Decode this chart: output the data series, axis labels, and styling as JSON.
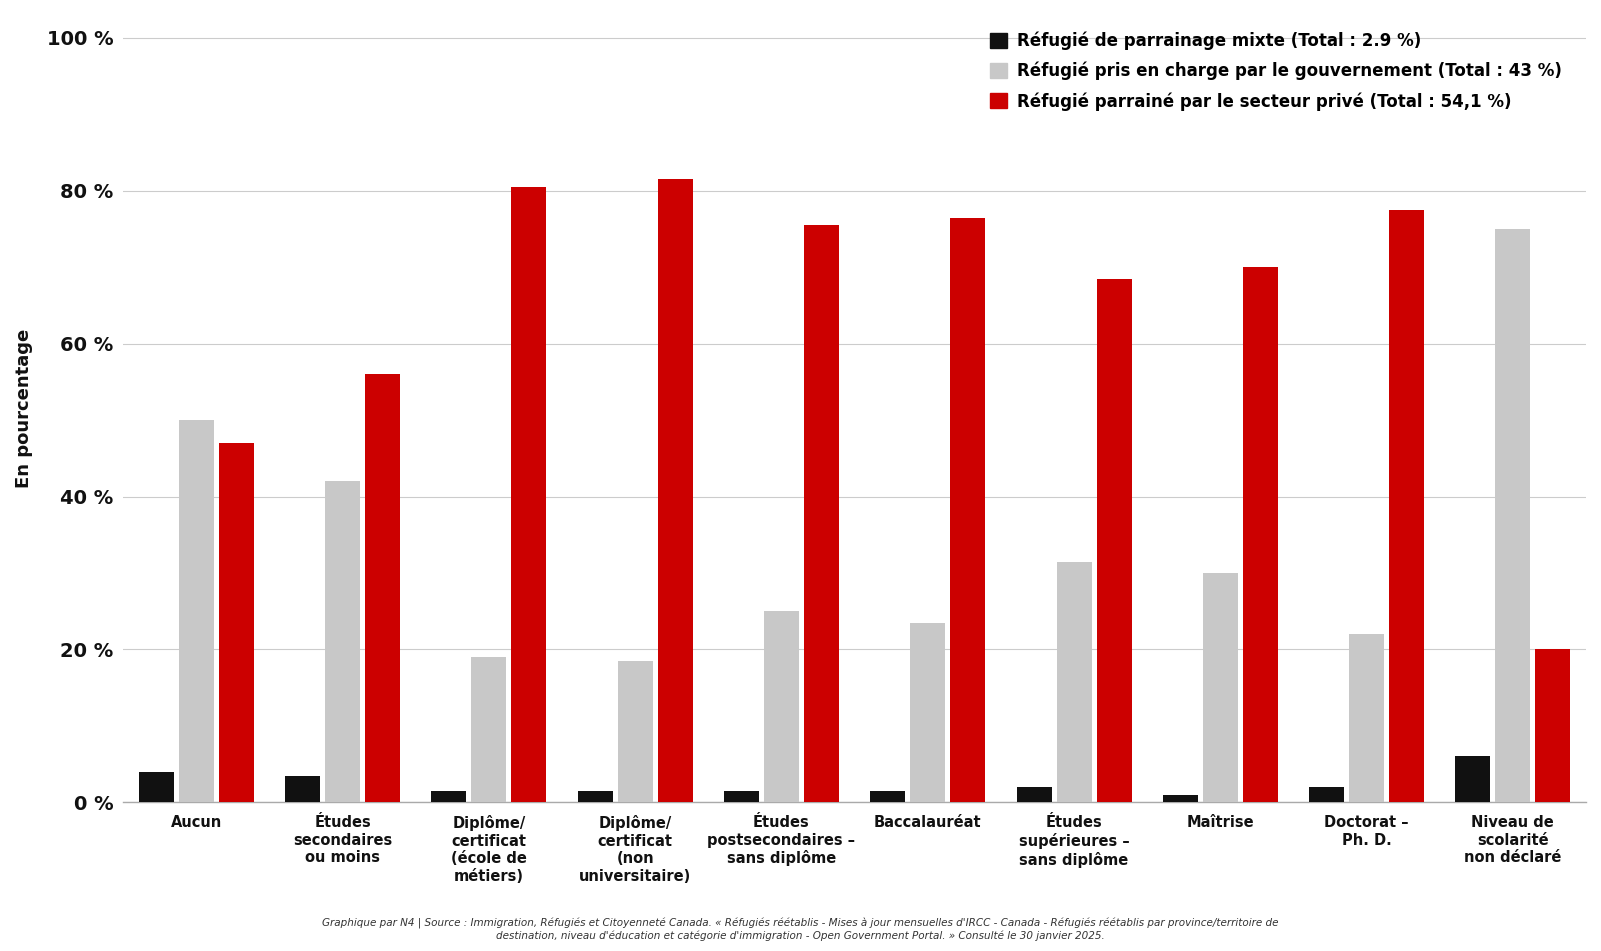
{
  "categories": [
    "Aucun",
    "Études\nsecondaires\nou moins",
    "Diplôme/\ncertificat\n(école de\nmétiers)",
    "Diplôme/\ncertificat\n(non\nuniversitaire)",
    "Études\npostsecondaires –\nsans diplôme",
    "Baccalauréat",
    "Études\nsupérieures –\nsans diplôme",
    "Maîtrise",
    "Doctorat –\nPh. D.",
    "Niveau de\nscolarité\nnon déclaré"
  ],
  "mixte": [
    4.0,
    3.5,
    1.5,
    1.5,
    1.5,
    1.5,
    2.0,
    1.0,
    2.0,
    6.0
  ],
  "gouvernement": [
    50.0,
    42.0,
    19.0,
    18.5,
    25.0,
    23.5,
    31.5,
    30.0,
    22.0,
    75.0
  ],
  "prive": [
    47.0,
    56.0,
    80.5,
    81.5,
    75.5,
    76.5,
    68.5,
    70.0,
    77.5,
    20.0
  ],
  "color_mixte": "#111111",
  "color_gouvernement": "#c8c8c8",
  "color_prive": "#cc0000",
  "legend_labels": [
    "Réfugié de parrainage mixte (Total : 2.9 %)",
    "Réfugié pris en charge par le gouvernement (Total : 43 %)",
    "Réfugié parrainé par le secteur privé (Total : 54,1 %)"
  ],
  "ylabel": "En pourcentage",
  "yticks": [
    0,
    20,
    40,
    60,
    80,
    100
  ],
  "ytick_labels": [
    "0 %",
    "20 %",
    "40 %",
    "60 %",
    "80 %",
    "100 %"
  ],
  "ylim": [
    0,
    103
  ],
  "footnote": "Graphique par N4 | Source : Immigration, Réfugiés et Citoyenneté Canada. « Réfugiés réétablis - Mises à jour mensuelles d'IRCC - Canada - Réfugiés réétablis par province/territoire de\ndestination, niveau d'éducation et catégorie d'immigration - Open Government Portal. » Consulté le 30 janvier 2025.",
  "background_color": "#ffffff",
  "grid_color": "#cccccc"
}
